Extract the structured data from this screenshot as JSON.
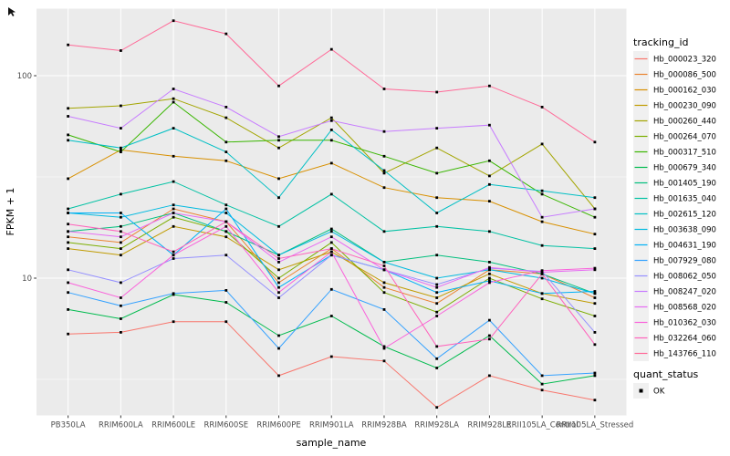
{
  "figure": {
    "y_axis": {
      "title": "FPKM + 1",
      "tick_labels": [
        "100",
        "10"
      ]
    },
    "x_axis": {
      "title": "sample_name"
    },
    "legend": {
      "color_title": "tracking_id",
      "shape_title": "quant_status",
      "shape_entries": [
        {
          "label": "OK",
          "marker": "black-square"
        }
      ]
    },
    "theme": {
      "panel_fill": "#EBEBEB",
      "grid_color": "#FFFFFF",
      "tick_text_color": "#4D4D4D",
      "marker_color": "#000000",
      "legend_key_fill": "#F0F0F0"
    }
  },
  "chart_data": {
    "type": "line",
    "title": "",
    "xlabel": "sample_name",
    "ylabel": "FPKM + 1",
    "y_scale": "log10",
    "ylim": [
      2.1,
      213
    ],
    "y_major_ticks": [
      100,
      10
    ],
    "y_tick_labels": [
      "100",
      "10"
    ],
    "grid": true,
    "legend_position": "right",
    "point_marker": "filled-black-square (quant_status = OK at every point)",
    "categories": [
      "PB350LA",
      "RRIM600LA",
      "RRIM600LE",
      "RRIM600SE",
      "RRIM600PE",
      "RRIM901LA",
      "RRIM928BA",
      "RRIM928LA",
      "RRIM928LE",
      "RRII105LA_Control",
      "RRII105LA_Stressed"
    ],
    "series": [
      {
        "name": "Hb_000023_320",
        "color": "#F8766D",
        "values": [
          5.3,
          5.4,
          6.1,
          6.1,
          3.3,
          4.1,
          3.9,
          2.3,
          3.3,
          2.8,
          2.5
        ]
      },
      {
        "name": "Hb_000086_500",
        "color": "#EA8331",
        "values": [
          16,
          15,
          22,
          19,
          9.5,
          14,
          9,
          7.5,
          11,
          10.5,
          8
        ]
      },
      {
        "name": "Hb_000162_030",
        "color": "#D89000",
        "values": [
          31,
          43,
          40,
          38,
          31,
          37,
          28,
          25,
          24,
          19,
          16.5
        ]
      },
      {
        "name": "Hb_000230_090",
        "color": "#C09B00",
        "values": [
          14,
          13,
          18,
          16,
          11,
          13.5,
          9.5,
          8,
          10.5,
          8.4,
          7.5
        ]
      },
      {
        "name": "Hb_000260_440",
        "color": "#A3A500",
        "values": [
          69,
          71,
          77,
          62,
          44,
          62,
          33,
          44,
          32,
          46,
          22
        ]
      },
      {
        "name": "Hb_000264_070",
        "color": "#7CAE00",
        "values": [
          15,
          14,
          20,
          17,
          10,
          15,
          8.5,
          6.8,
          10,
          7.9,
          6.5
        ]
      },
      {
        "name": "Hb_000317_510",
        "color": "#39B600",
        "values": [
          51,
          42,
          74,
          47,
          48,
          48,
          40,
          33,
          38,
          26,
          20
        ]
      },
      {
        "name": "Hb_000679_340",
        "color": "#00BB4E",
        "values": [
          7,
          6.3,
          8.3,
          7.6,
          5.2,
          6.5,
          4.6,
          3.6,
          5.2,
          3,
          3.3
        ]
      },
      {
        "name": "Hb_001405_190",
        "color": "#00BF7D",
        "values": [
          17,
          18,
          21,
          17,
          13,
          17.5,
          12,
          13,
          12,
          10.5,
          8.4
        ]
      },
      {
        "name": "Hb_001635_040",
        "color": "#00C1A3",
        "values": [
          22,
          26,
          30,
          23,
          18,
          26,
          17,
          18,
          17,
          14.5,
          14
        ]
      },
      {
        "name": "Hb_002615_120",
        "color": "#00BFC4",
        "values": [
          48,
          44,
          55,
          42,
          25,
          54,
          34,
          21,
          29,
          27,
          25
        ]
      },
      {
        "name": "Hb_003638_090",
        "color": "#00BAE0",
        "values": [
          21,
          20,
          23,
          21,
          13,
          17,
          12,
          10,
          11,
          10,
          8.4
        ]
      },
      {
        "name": "Hb_004631_190",
        "color": "#00B0F6",
        "values": [
          21,
          21,
          13,
          22,
          9,
          13,
          11,
          8.5,
          9.7,
          8.4,
          8.6
        ]
      },
      {
        "name": "Hb_007929_080",
        "color": "#35A2FF",
        "values": [
          8.5,
          7.3,
          8.4,
          8.7,
          4.5,
          8.8,
          7,
          4,
          6.2,
          3.3,
          3.4
        ]
      },
      {
        "name": "Hb_008062_050",
        "color": "#9590FF",
        "values": [
          11,
          9.5,
          12.5,
          13,
          8,
          13,
          11,
          9.3,
          11.2,
          10.8,
          5.4
        ]
      },
      {
        "name": "Hb_008247_020",
        "color": "#C77CFF",
        "values": [
          63,
          55,
          86,
          70,
          50,
          60,
          53,
          55,
          57,
          20,
          22
        ]
      },
      {
        "name": "Hb_008568_020",
        "color": "#E76BF3",
        "values": [
          17,
          16,
          21,
          19,
          12,
          16,
          11,
          9,
          11.3,
          10.7,
          11
        ]
      },
      {
        "name": "Hb_010362_030",
        "color": "#FA62DB",
        "values": [
          9.5,
          8,
          13,
          18,
          8.5,
          13.5,
          4.5,
          6.5,
          9.5,
          10.9,
          11.2
        ]
      },
      {
        "name": "Hb_032264_060",
        "color": "#FF62BC",
        "values": [
          18.5,
          17,
          13.5,
          19,
          12.5,
          14,
          11.5,
          4.6,
          5,
          10.5,
          4.7
        ]
      },
      {
        "name": "Hb_143766_110",
        "color": "#FF6A98",
        "values": [
          142,
          133,
          187,
          161,
          89,
          135,
          86,
          83,
          89,
          70,
          47
        ]
      }
    ]
  }
}
